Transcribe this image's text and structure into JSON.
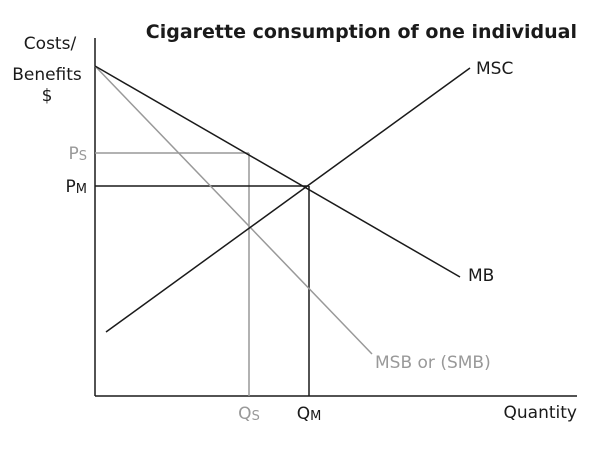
{
  "title": "Cigarette consumption of one individual",
  "y_axis": {
    "line1": "Costs/",
    "line2": "Benefits",
    "line3": "$"
  },
  "x_axis": {
    "label": "Quantity"
  },
  "curves": {
    "msc": "MSC",
    "mb": "MB",
    "msb": "MSB or (SMB)"
  },
  "price_labels": {
    "ps": {
      "main": "P",
      "sub": "S"
    },
    "pm": {
      "main": "P",
      "sub": "M"
    }
  },
  "quantity_labels": {
    "qs": {
      "main": "Q",
      "sub": "S"
    },
    "qm": {
      "main": "Q",
      "sub": "M"
    }
  },
  "colors": {
    "black": "#1a1a1a",
    "gray": "#999999"
  }
}
